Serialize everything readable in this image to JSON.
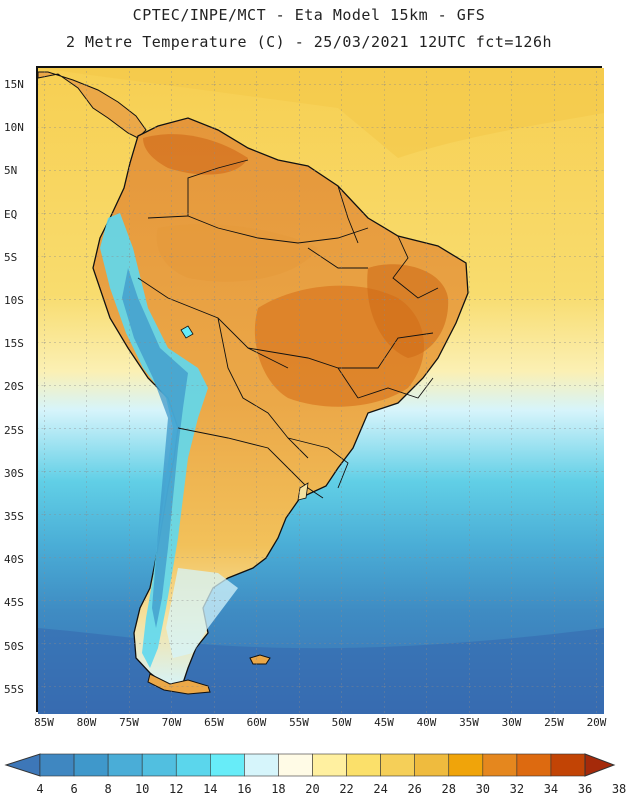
{
  "title_line1": "CPTEC/INPE/MCT -  Eta Model 15km - GFS",
  "title_line2": "2 Metre Temperature (C) - 25/03/2021 12UTC fct=126h",
  "latitude_labels": [
    "15N",
    "10N",
    "5N",
    "EQ",
    "5S",
    "10S",
    "15S",
    "20S",
    "25S",
    "30S",
    "35S",
    "40S",
    "45S",
    "50S",
    "55S"
  ],
  "longitude_labels": [
    "85W",
    "80W",
    "75W",
    "70W",
    "65W",
    "60W",
    "55W",
    "50W",
    "45W",
    "40W",
    "35W",
    "30W",
    "25W",
    "20W"
  ],
  "colorbar": {
    "labels": [
      "4",
      "6",
      "8",
      "10",
      "12",
      "14",
      "16",
      "18",
      "20",
      "22",
      "24",
      "26",
      "28",
      "30",
      "32",
      "34",
      "36",
      "38"
    ],
    "colors": [
      "#3d77b8",
      "#3f87c1",
      "#3f98cb",
      "#4aadd7",
      "#51bfe0",
      "#5bd6ec",
      "#67ecf8",
      "#d6f5fb",
      "#fffbe6",
      "#fff0a0",
      "#fbe06a",
      "#f5cf58",
      "#efbb3e",
      "#f0a40a",
      "#e5871e",
      "#dd6a10",
      "#c24405",
      "#a52a0a"
    ]
  },
  "colors": {
    "ocean_warm": "#f8d55c",
    "ocean_mid": "#f9e796",
    "ocean_cold": "#55c2de",
    "ocean_deep": "#3e7fbc",
    "land": "#eba848",
    "land_hot": "#d97a22",
    "andes": "#5ed8ef",
    "border": "#111111"
  }
}
